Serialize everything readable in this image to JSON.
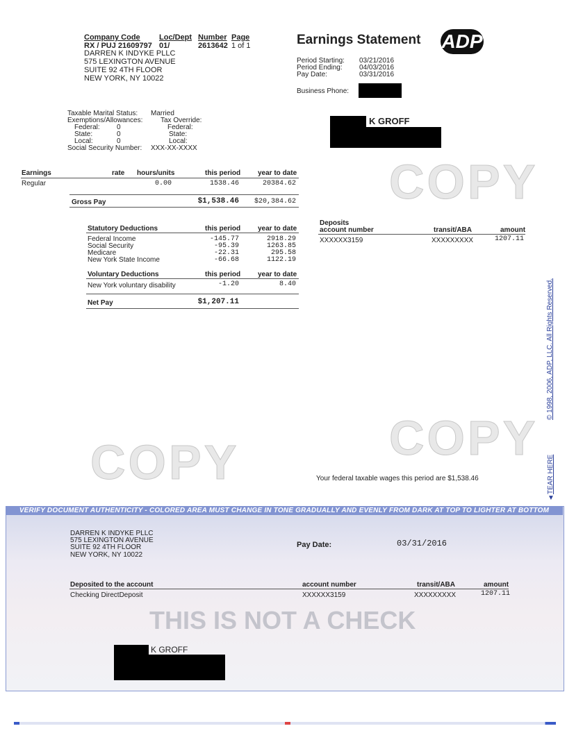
{
  "header": {
    "company_code_label": "Company Code",
    "company_code": "RX / PUJ 21609797",
    "loc_dept_label": "Loc/Dept",
    "loc_dept": "01/",
    "number_label": "Number",
    "number": "2613642",
    "page_label": "Page",
    "page": "1 of 1",
    "company_name": "DARREN K INDYKE PLLC",
    "address1": "575 LEXINGTON AVENUE",
    "address2": "SUITE 92 4TH FLOOR",
    "address3": "NEW YORK, NY 10022"
  },
  "statement": {
    "title": "Earnings Statement",
    "logo": "ADP",
    "period_starting_label": "Period Starting:",
    "period_starting": "03/21/2016",
    "period_ending_label": "Period Ending:",
    "period_ending": "04/03/2016",
    "pay_date_label": "Pay Date:",
    "pay_date": "03/31/2016",
    "business_phone_label": "Business Phone:"
  },
  "employee": {
    "name": "K GROFF"
  },
  "tax": {
    "marital_label": "Taxable Marital Status:",
    "marital": "Married",
    "exemptions_label": "Exemptions/Allowances:",
    "override_label": "Tax Override:",
    "federal_label": "Federal:",
    "federal": "0",
    "state_label": "State:",
    "state": "0",
    "local_label": "Local:",
    "local": "0",
    "ssn_label": "Social Security Number:",
    "ssn": "XXX-XX-XXXX"
  },
  "earnings": {
    "header": "Earnings",
    "rate": "rate",
    "hours": "hours/units",
    "this_period": "this period",
    "ytd": "year to date",
    "rows": [
      {
        "label": "Regular",
        "hours": "0.00",
        "this_period": "1538.46",
        "ytd": "20384.62"
      }
    ],
    "gross_label": "Gross Pay",
    "gross": "$1,538.46",
    "gross_ytd": "$20,384.62"
  },
  "statutory": {
    "header": "Statutory Deductions",
    "this_period": "this period",
    "ytd": "year to date",
    "rows": [
      {
        "label": "Federal Income",
        "this_period": "-145.77",
        "ytd": "2918.29"
      },
      {
        "label": "Social Security",
        "this_period": "-95.39",
        "ytd": "1263.85"
      },
      {
        "label": "Medicare",
        "this_period": "-22.31",
        "ytd": "295.58"
      },
      {
        "label": "New York State Income",
        "this_period": "-66.68",
        "ytd": "1122.19"
      }
    ]
  },
  "voluntary": {
    "header": "Voluntary Deductions",
    "this_period": "this period",
    "ytd": "year to date",
    "rows": [
      {
        "label": "New York voluntary disability",
        "this_period": "-1.20",
        "ytd": "8.40"
      }
    ]
  },
  "net": {
    "label": "Net Pay",
    "value": "$1,207.11"
  },
  "deposits": {
    "header": "Deposits",
    "account_label": "account number",
    "transit_label": "transit/ABA",
    "amount_label": "amount",
    "account": "XXXXXX3159",
    "transit": "XXXXXXXXX",
    "amount": "1207.11"
  },
  "federal_wages": "Your federal taxable wages this period are  $1,538.46",
  "copyright": "© 1998, 2006, ADP, LLC. All Rights Reserved.",
  "tear_here": "TEAR HERE",
  "watermark": "COPY",
  "check": {
    "banner": "VERIFY DOCUMENT AUTHENTICITY - COLORED AREA MUST CHANGE IN TONE GRADUALLY AND EVENLY FROM DARK AT TOP TO LIGHTER AT BOTTOM",
    "company_name": "DARREN K INDYKE PLLC",
    "address1": "575 LEXINGTON AVENUE",
    "address2": "SUITE 92 4TH FLOOR",
    "address3": "NEW YORK, NY 10022",
    "pay_date_label": "Pay Date:",
    "pay_date": "03/31/2016",
    "deposited_label": "Deposited to the account",
    "account_type": "Checking DirectDeposit",
    "account_label": "account number",
    "account": "XXXXXX3159",
    "transit_label": "transit/ABA",
    "transit": "XXXXXXXXX",
    "amount_label": "amount",
    "amount": "1207.11",
    "stamp": "THIS IS NOT A CHECK",
    "payee": "K GROFF"
  }
}
